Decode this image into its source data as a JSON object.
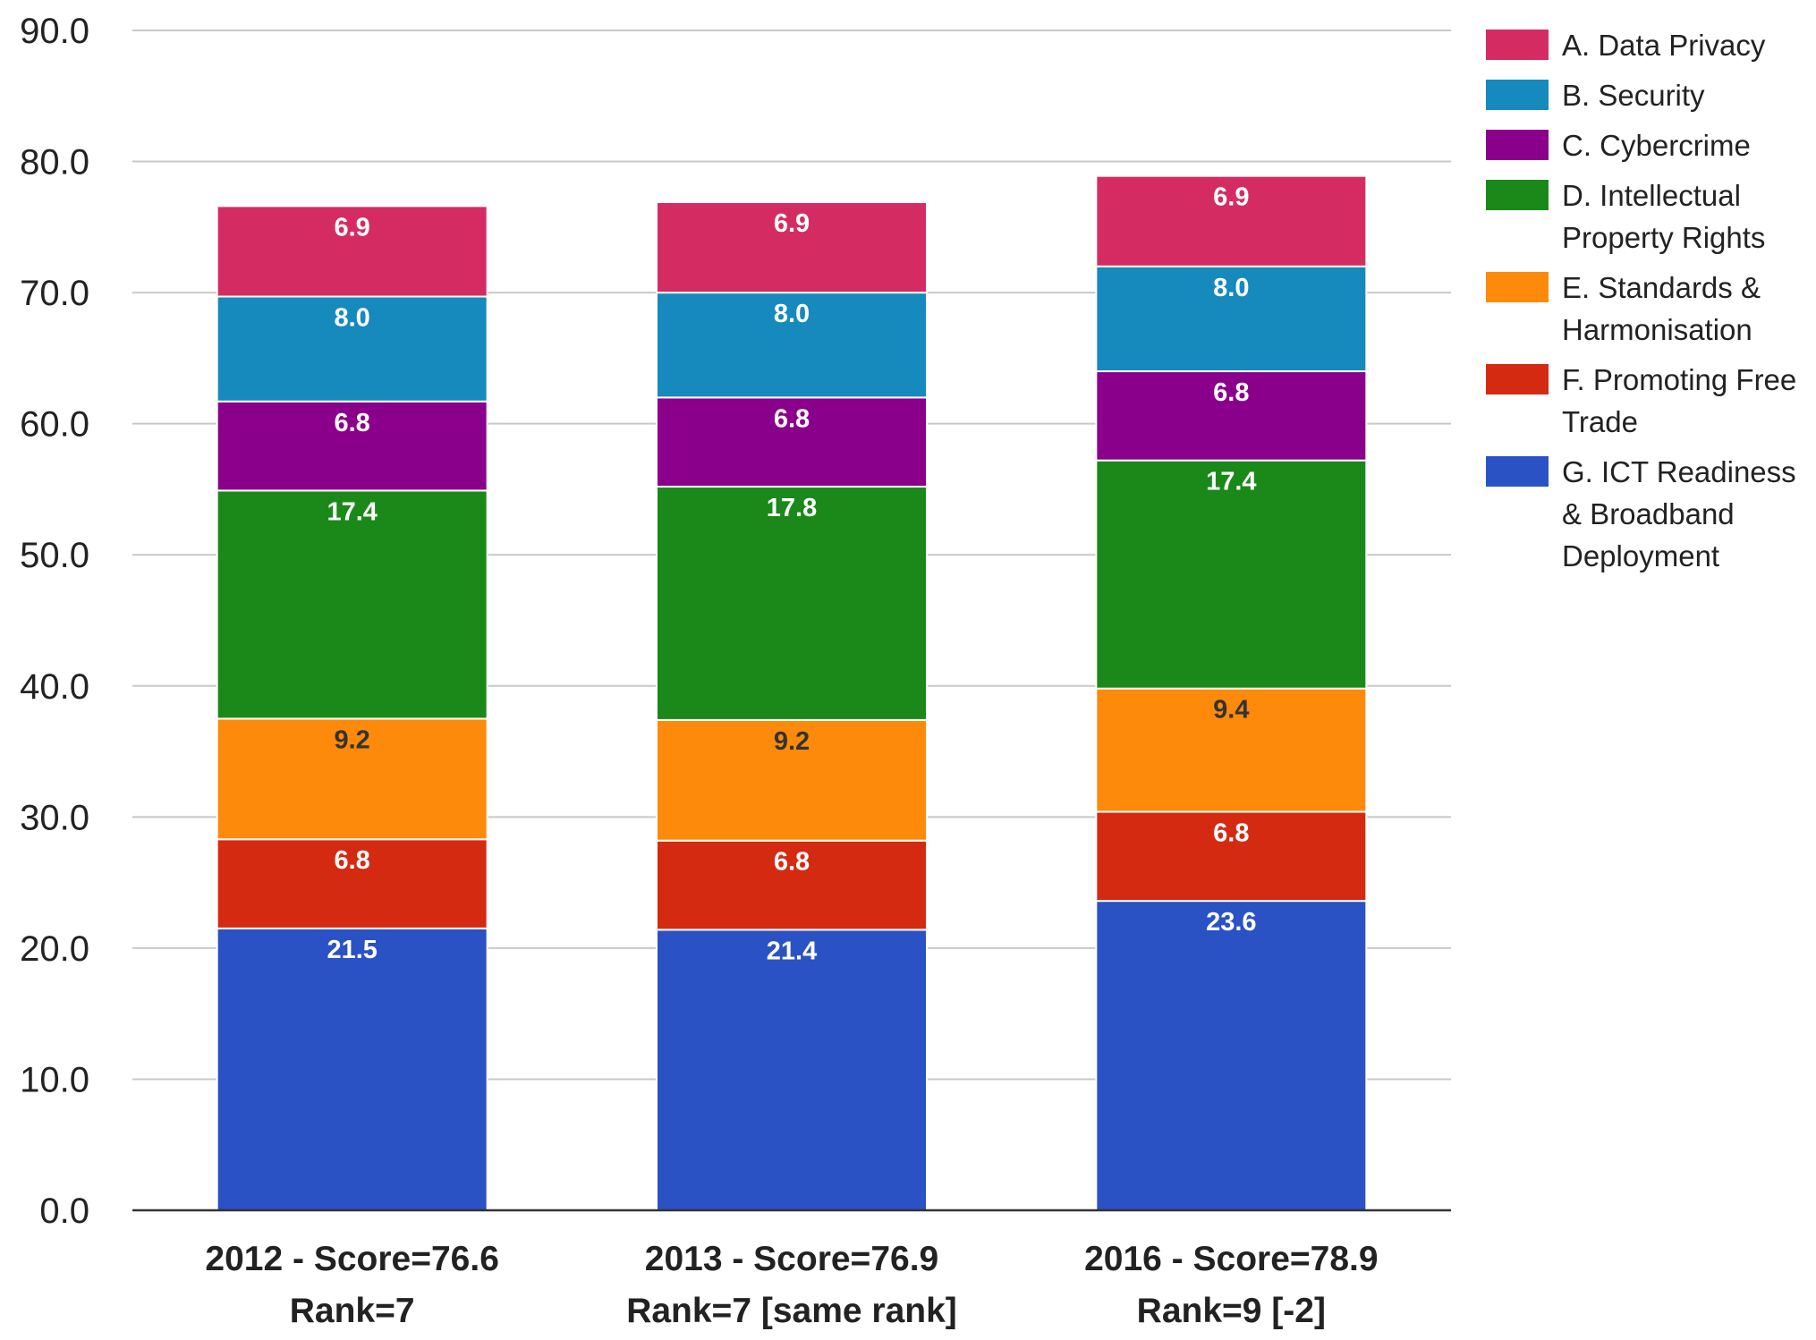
{
  "chart_data": {
    "type": "bar",
    "stacked": true,
    "categories": [
      [
        "2012 - Score=76.6",
        "Rank=7"
      ],
      [
        "2013 - Score=76.9",
        "Rank=7 [same rank]"
      ],
      [
        "2016 - Score=78.9",
        "Rank=9 [-2]"
      ]
    ],
    "series": [
      {
        "name": "G. ICT Readiness & Broadband Deployment",
        "legend_lines": [
          "G. ICT Readiness",
          "& Broadband",
          "Deployment"
        ],
        "values": [
          21.5,
          21.4,
          23.6
        ],
        "labels": [
          "21.5",
          "21.4",
          "23.6"
        ],
        "color": "#2a52c4",
        "label_color": "#ffffff"
      },
      {
        "name": "F. Promoting Free Trade",
        "legend_lines": [
          "F. Promoting Free",
          "Trade"
        ],
        "values": [
          6.8,
          6.8,
          6.8
        ],
        "labels": [
          "6.8",
          "6.8",
          "6.8"
        ],
        "color": "#d42a12",
        "label_color": "#ffffff"
      },
      {
        "name": "E. Standards & Harmonisation",
        "legend_lines": [
          "E. Standards &",
          "Harmonisation"
        ],
        "values": [
          9.2,
          9.2,
          9.4
        ],
        "labels": [
          "9.2",
          "9.2",
          "9.4"
        ],
        "color": "#fd8a0b",
        "label_color": "#333333"
      },
      {
        "name": "D. Intellectual Property Rights",
        "legend_lines": [
          "D. Intellectual",
          "Property Rights"
        ],
        "values": [
          17.4,
          17.8,
          17.4
        ],
        "labels": [
          "17.4",
          "17.8",
          "17.4"
        ],
        "color": "#1a891a",
        "label_color": "#ffffff"
      },
      {
        "name": "C. Cybercrime",
        "legend_lines": [
          "C. Cybercrime"
        ],
        "values": [
          6.8,
          6.8,
          6.8
        ],
        "labels": [
          "6.8",
          "6.8",
          "6.8"
        ],
        "color": "#8a008a",
        "label_color": "#ffffff"
      },
      {
        "name": "B. Security",
        "legend_lines": [
          "B. Security"
        ],
        "values": [
          8.0,
          8.0,
          8.0
        ],
        "labels": [
          "8.0",
          "8.0",
          "8.0"
        ],
        "color": "#1689bd",
        "label_color": "#ffffff"
      },
      {
        "name": "A. Data Privacy",
        "legend_lines": [
          "A. Data Privacy"
        ],
        "values": [
          6.9,
          6.9,
          6.9
        ],
        "labels": [
          "6.9",
          "6.9",
          "6.9"
        ],
        "color": "#d42c62",
        "label_color": "#ffffff"
      }
    ],
    "legend_order": [
      "A. Data Privacy",
      "B. Security",
      "C. Cybercrime",
      "D. Intellectual Property Rights",
      "E. Standards & Harmonisation",
      "F. Promoting Free Trade",
      "G. ICT Readiness & Broadband Deployment"
    ],
    "ylim": [
      0,
      90
    ],
    "yticks": [
      "0.0",
      "10.0",
      "20.0",
      "30.0",
      "40.0",
      "50.0",
      "60.0",
      "70.0",
      "80.0",
      "90.0"
    ],
    "title": "",
    "xlabel": "",
    "ylabel": "",
    "grid": true,
    "legend_position": "right"
  }
}
